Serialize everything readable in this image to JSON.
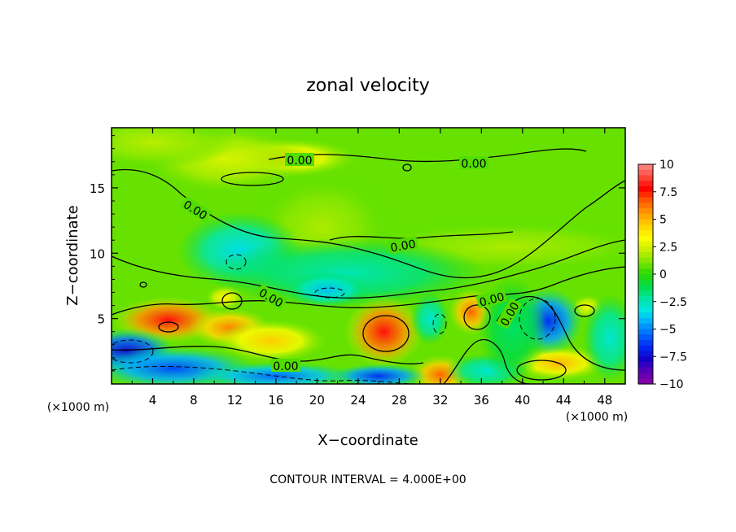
{
  "chart_data": {
    "type": "heatmap",
    "title": "zonal velocity",
    "xlabel": "X−coordinate",
    "ylabel": "Z−coordinate",
    "x_unit_left": "(×1000 m)",
    "x_unit_right": "(×1000 m)",
    "x_ticks": [
      "4",
      "8",
      "12",
      "16",
      "20",
      "24",
      "28",
      "32",
      "36",
      "40",
      "44",
      "48"
    ],
    "x_tick_values": [
      4,
      8,
      12,
      16,
      20,
      24,
      28,
      32,
      36,
      40,
      44,
      48
    ],
    "y_ticks": [
      "5",
      "10",
      "15"
    ],
    "y_tick_values": [
      5,
      10,
      15
    ],
    "xlim": [
      0,
      50
    ],
    "ylim": [
      0,
      19.6
    ],
    "colorbar": {
      "tick_labels": [
        "10",
        "7.5",
        "5",
        "2.5",
        "0",
        "−2.5",
        "−5",
        "−7.5",
        "−10"
      ],
      "range": [
        -10,
        10
      ],
      "colors": [
        "#ff8c8c",
        "#ff4a3c",
        "#ff0000",
        "#ff5a00",
        "#ff9a00",
        "#ffd000",
        "#ffff00",
        "#c8f000",
        "#7ee600",
        "#2cd800",
        "#00dc46",
        "#00e6a0",
        "#00e6e6",
        "#00a8ff",
        "#0064ff",
        "#0028f0",
        "#1400c8",
        "#5a00b4",
        "#8c00a8"
      ]
    },
    "contour_labels": [
      "0.00",
      "0.00",
      "0.00",
      "0.00",
      "0.00",
      "0.00",
      "0.00",
      "0.00"
    ],
    "footer": "CONTOUR INTERVAL = 4.000E+00",
    "blobs": [
      {
        "x": 16.5,
        "y": 17.3,
        "rx": 5.5,
        "ry": 1.1,
        "v": 4.5
      },
      {
        "x": 11.0,
        "y": 17.2,
        "rx": 6.0,
        "ry": 2.0,
        "v": 2.5
      },
      {
        "x": 4.0,
        "y": 18.5,
        "rx": 6.0,
        "ry": 1.5,
        "v": 2.0
      },
      {
        "x": 38.5,
        "y": 10.5,
        "rx": 11.0,
        "ry": 1.5,
        "v": 1.8
      },
      {
        "x": 20.5,
        "y": 12.0,
        "rx": 5.0,
        "ry": 3.0,
        "v": 1.8
      },
      {
        "x": 12.5,
        "y": 10.2,
        "rx": 4.5,
        "ry": 2.2,
        "v": -3.5
      },
      {
        "x": 23.0,
        "y": 8.5,
        "rx": 10.0,
        "ry": 2.0,
        "v": -2.5
      },
      {
        "x": 21.0,
        "y": 7.2,
        "rx": 3.0,
        "ry": 1.0,
        "v": -4.0
      },
      {
        "x": 5.5,
        "y": 4.9,
        "rx": 4.0,
        "ry": 1.3,
        "v": 8.0
      },
      {
        "x": 11.5,
        "y": 4.3,
        "rx": 3.0,
        "ry": 1.1,
        "v": 6.0
      },
      {
        "x": 15.5,
        "y": 3.3,
        "rx": 4.0,
        "ry": 1.2,
        "v": 4.5
      },
      {
        "x": 11.0,
        "y": 6.6,
        "rx": 1.4,
        "ry": 0.7,
        "v": 3.5
      },
      {
        "x": 26.5,
        "y": 4.0,
        "rx": 2.8,
        "ry": 2.0,
        "v": 8.0
      },
      {
        "x": 35.0,
        "y": 5.5,
        "rx": 1.6,
        "ry": 1.3,
        "v": 6.5
      },
      {
        "x": 32.0,
        "y": 0.7,
        "rx": 2.2,
        "ry": 1.1,
        "v": 6.5
      },
      {
        "x": 43.5,
        "y": 1.6,
        "rx": 3.5,
        "ry": 1.0,
        "v": 5.0
      },
      {
        "x": 46.3,
        "y": 5.9,
        "rx": 1.2,
        "ry": 0.7,
        "v": 3.0
      },
      {
        "x": 1.5,
        "y": 2.5,
        "rx": 3.5,
        "ry": 1.3,
        "v": -7.5
      },
      {
        "x": 6.0,
        "y": 1.2,
        "rx": 6.0,
        "ry": 1.2,
        "v": -6.0
      },
      {
        "x": 16.0,
        "y": 0.6,
        "rx": 6.0,
        "ry": 0.8,
        "v": -5.5
      },
      {
        "x": 26.0,
        "y": 0.6,
        "rx": 3.5,
        "ry": 0.7,
        "v": -6.5
      },
      {
        "x": 42.5,
        "y": 4.8,
        "rx": 2.5,
        "ry": 1.9,
        "v": -6.5
      },
      {
        "x": 31.0,
        "y": 5.0,
        "rx": 1.4,
        "ry": 1.5,
        "v": -3.0
      },
      {
        "x": 36.5,
        "y": 1.0,
        "rx": 3.0,
        "ry": 1.0,
        "v": -3.0
      },
      {
        "x": 48.5,
        "y": 3.5,
        "rx": 2.0,
        "ry": 2.5,
        "v": -3.0
      },
      {
        "x": 39.0,
        "y": 4.2,
        "rx": 2.5,
        "ry": 3.0,
        "v": -1.5
      }
    ]
  }
}
